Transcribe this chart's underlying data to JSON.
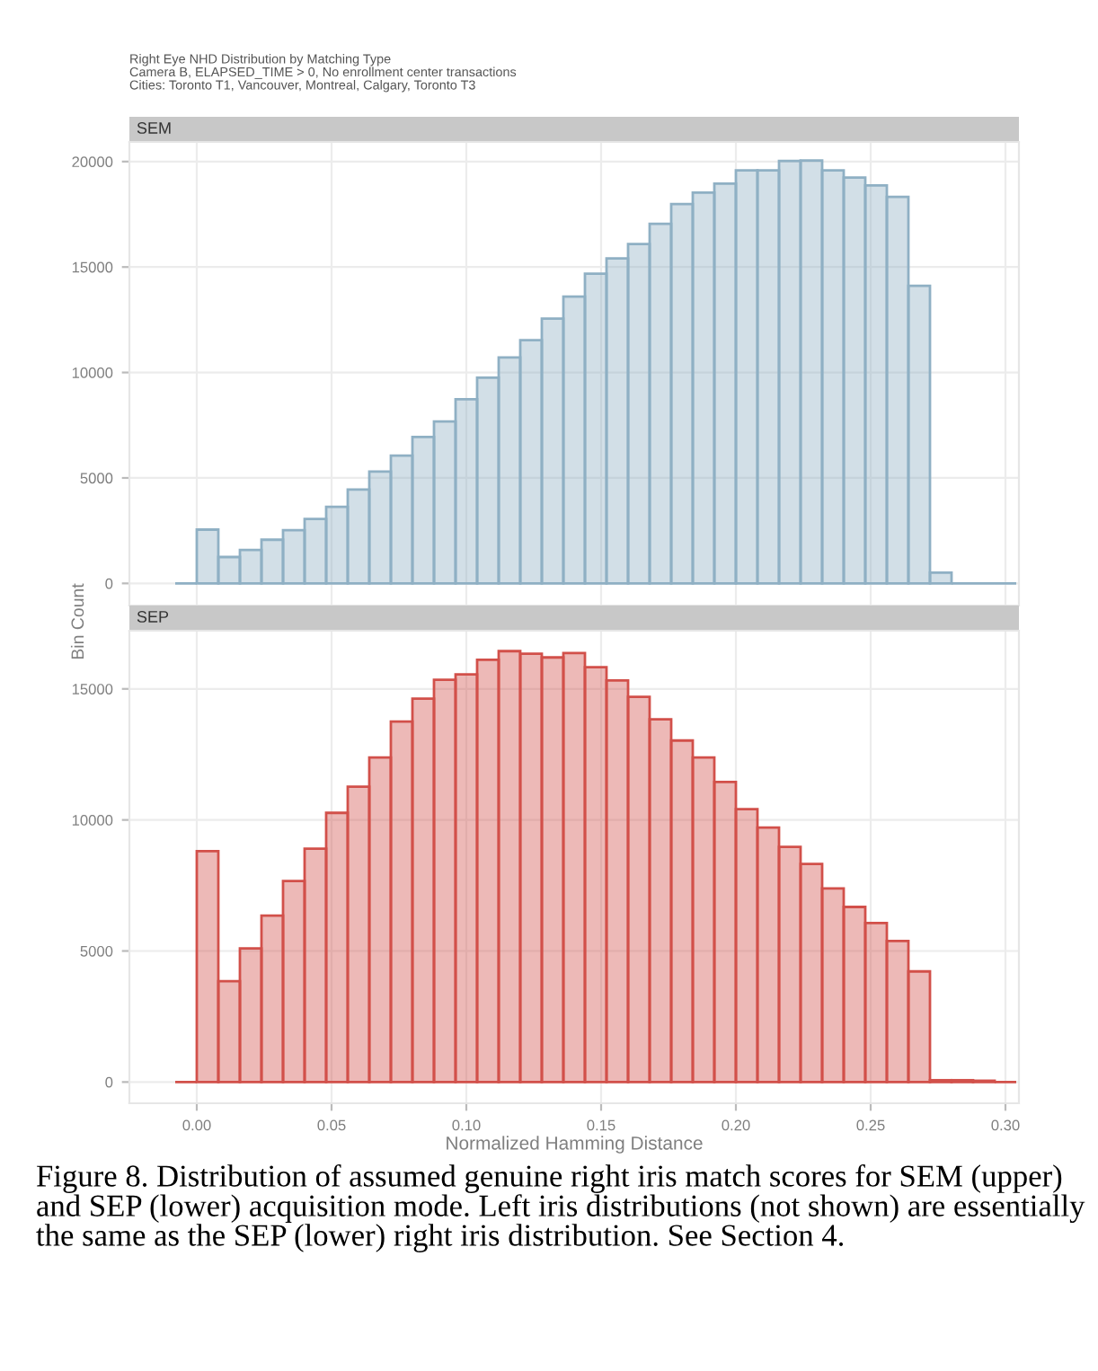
{
  "chart_data": [
    {
      "type": "histogram",
      "title": "SEM",
      "subtitle": "Right Eye NHD Distribution by Matching Type\nCamera B, ELAPSED_TIME > 0, No enrollment center transactions\nCities: Toronto T1, Vancouver, Montreal, Calgary, Toronto T3",
      "ylabel": "Bin Count",
      "bins": [
        -0.008,
        0,
        0.008,
        0.016,
        0.024,
        0.032,
        0.04,
        0.048,
        0.056,
        0.064,
        0.072,
        0.08,
        0.088,
        0.096,
        0.104,
        0.112,
        0.12,
        0.128,
        0.136,
        0.144,
        0.152,
        0.16,
        0.168,
        0.176,
        0.184,
        0.192,
        0.2,
        0.208,
        0.216,
        0.224,
        0.232,
        0.24,
        0.248,
        0.256,
        0.264,
        0.272,
        0.28,
        0.288,
        0.296,
        0.304
      ],
      "series": [
        {
          "color": "#8fb0c4",
          "values": [
            0,
            2550,
            1250,
            1590,
            2070,
            2520,
            3060,
            3630,
            4450,
            5300,
            6060,
            6940,
            7680,
            8730,
            9750,
            10710,
            11530,
            12550,
            13600,
            14680,
            15410,
            16090,
            17050,
            17990,
            18530,
            18950,
            19580,
            19580,
            20030,
            20050,
            19580,
            19240,
            18870,
            18330,
            14110,
            510,
            0,
            0,
            0
          ]
        }
      ],
      "xlim": [
        -0.025,
        0.305
      ],
      "xticks": [
        {
          "value": 0,
          "label": null
        },
        {
          "value": 0.05,
          "label": null
        },
        {
          "value": 0.1,
          "label": null
        },
        {
          "value": 0.15,
          "label": null
        },
        {
          "value": 0.2,
          "label": null
        },
        {
          "value": 0.25,
          "label": null
        },
        {
          "value": 0.3,
          "label": null
        }
      ],
      "ylim": [
        -1050,
        20930
      ],
      "yticks": [
        0,
        5000,
        10000,
        15000,
        20000
      ],
      "grid": true,
      "tick_labels": "y"
    },
    {
      "type": "histogram",
      "title": "SEP",
      "xlabel": "Normalized Hamming Distance",
      "bins": [
        -0.008,
        0,
        0.008,
        0.016,
        0.024,
        0.032,
        0.04,
        0.048,
        0.056,
        0.064,
        0.072,
        0.08,
        0.088,
        0.096,
        0.104,
        0.112,
        0.12,
        0.128,
        0.136,
        0.144,
        0.152,
        0.16,
        0.168,
        0.176,
        0.184,
        0.192,
        0.2,
        0.208,
        0.216,
        0.224,
        0.232,
        0.24,
        0.248,
        0.256,
        0.264,
        0.272,
        0.28,
        0.288,
        0.296,
        0.304
      ],
      "series": [
        {
          "color": "#d2504a",
          "values": [
            0,
            8810,
            3850,
            5100,
            6350,
            7670,
            8900,
            10270,
            11270,
            12380,
            13750,
            14630,
            15350,
            15550,
            16110,
            16440,
            16340,
            16200,
            16370,
            15830,
            15320,
            14700,
            13840,
            13030,
            12380,
            11450,
            10410,
            9710,
            8970,
            8320,
            7390,
            6680,
            6070,
            5380,
            4220,
            70,
            70,
            50,
            0
          ]
        }
      ],
      "xlim": [
        -0.025,
        0.305
      ],
      "xticks": [
        {
          "value": 0,
          "label": "0.00"
        },
        {
          "value": 0.05,
          "label": "0.05"
        },
        {
          "value": 0.1,
          "label": "0.10"
        },
        {
          "value": 0.15,
          "label": "0.15"
        },
        {
          "value": 0.2,
          "label": "0.20"
        },
        {
          "value": 0.25,
          "label": "0.25"
        },
        {
          "value": 0.3,
          "label": "0.30"
        }
      ],
      "ylim": [
        -810,
        17220
      ],
      "yticks": [
        0,
        5000,
        10000,
        15000
      ],
      "grid": true,
      "annotations": [
        "Figure 8. Distribution of assumed genuine right iris match scores for SEM (upper) and SEP (lower) acquisition mode. Left iris distributions (not shown) are essentially the same as the SEP (lower) right iris distribution. See Section 4."
      ]
    }
  ]
}
